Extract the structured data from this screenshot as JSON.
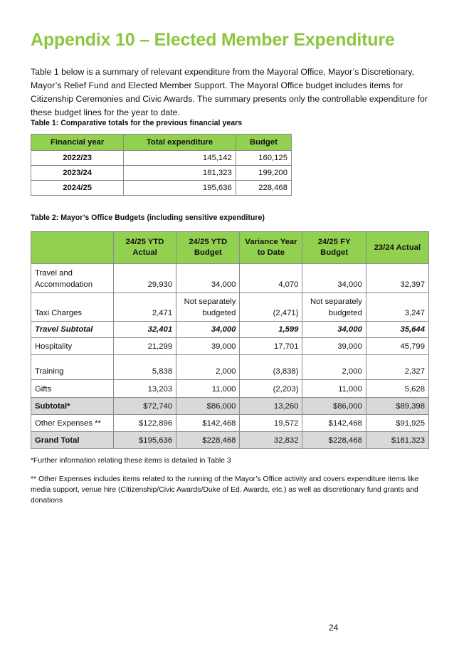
{
  "title": "Appendix 10 – Elected Member Expenditure",
  "intro": "Table 1 below is a summary of relevant expenditure from the Mayoral Office, Mayor’s Discretionary, Mayor’s Relief Fund and Elected Member Support. The Mayoral Office budget includes items for Citizenship Ceremonies and Civic Awards. The summary presents only the controllable expenditure for these budget lines for the year to date.",
  "table1": {
    "caption": "Table 1: Comparative totals for the previous financial years",
    "headers": [
      "Financial year",
      "Total expenditure",
      "Budget"
    ],
    "rows": [
      [
        "2022/23",
        "145,142",
        "160,125"
      ],
      [
        "2023/24",
        "181,323",
        "199,200"
      ],
      [
        "2024/25",
        "195,636",
        "228,468"
      ]
    ]
  },
  "table2": {
    "caption": "Table 2: Mayor’s Office Budgets (including sensitive expenditure)",
    "headers": [
      "",
      "24/25 YTD Actual",
      "24/25 YTD Budget",
      "Variance Year to Date",
      "24/25 FY Budget",
      "23/24 Actual"
    ],
    "rows": [
      [
        "Travel and Accommodation",
        "29,930",
        "34,000",
        "4,070",
        "34,000",
        "32,397"
      ],
      [
        "Taxi Charges",
        "2,471",
        "Not separately budgeted",
        "(2,471)",
        "Not separately budgeted",
        "3,247"
      ],
      [
        "Travel Subtotal",
        "32,401",
        "34,000",
        "1,599",
        "34,000",
        "35,644"
      ],
      [
        "Hospitality",
        "21,299",
        "39,000",
        "17,701",
        "39,000",
        "45,799"
      ],
      [
        "Training",
        "5,838",
        "2,000",
        "(3,838)",
        "2,000",
        "2,327"
      ],
      [
        "Gifts",
        "13,203",
        "11,000",
        "(2,203)",
        "11,000",
        "5,628"
      ],
      [
        "Subtotal*",
        "$72,740",
        "$86,000",
        "13,260",
        "$86,000",
        "$89,398"
      ],
      [
        "Other Expenses **",
        "$122,896",
        "$142,468",
        "19,572",
        "$142,468",
        "$91,925"
      ],
      [
        "Grand Total",
        "$195,636",
        "$228,468",
        "32,832",
        "$228,468",
        "$181,323"
      ]
    ]
  },
  "note1": "*Further information relating these items is detailed in Table 3",
  "note2": "** Other Expenses includes items related to the running of the Mayor’s Office activity and covers expenditure items like media support, venue hire (Citizenship/Civic Awards/Duke of Ed. Awards, etc.) as well as discretionary fund grants and donations",
  "page_number": "24",
  "colors": {
    "title": "#8cc63f",
    "header": "#92d050",
    "shade": "#d9d9d9"
  }
}
